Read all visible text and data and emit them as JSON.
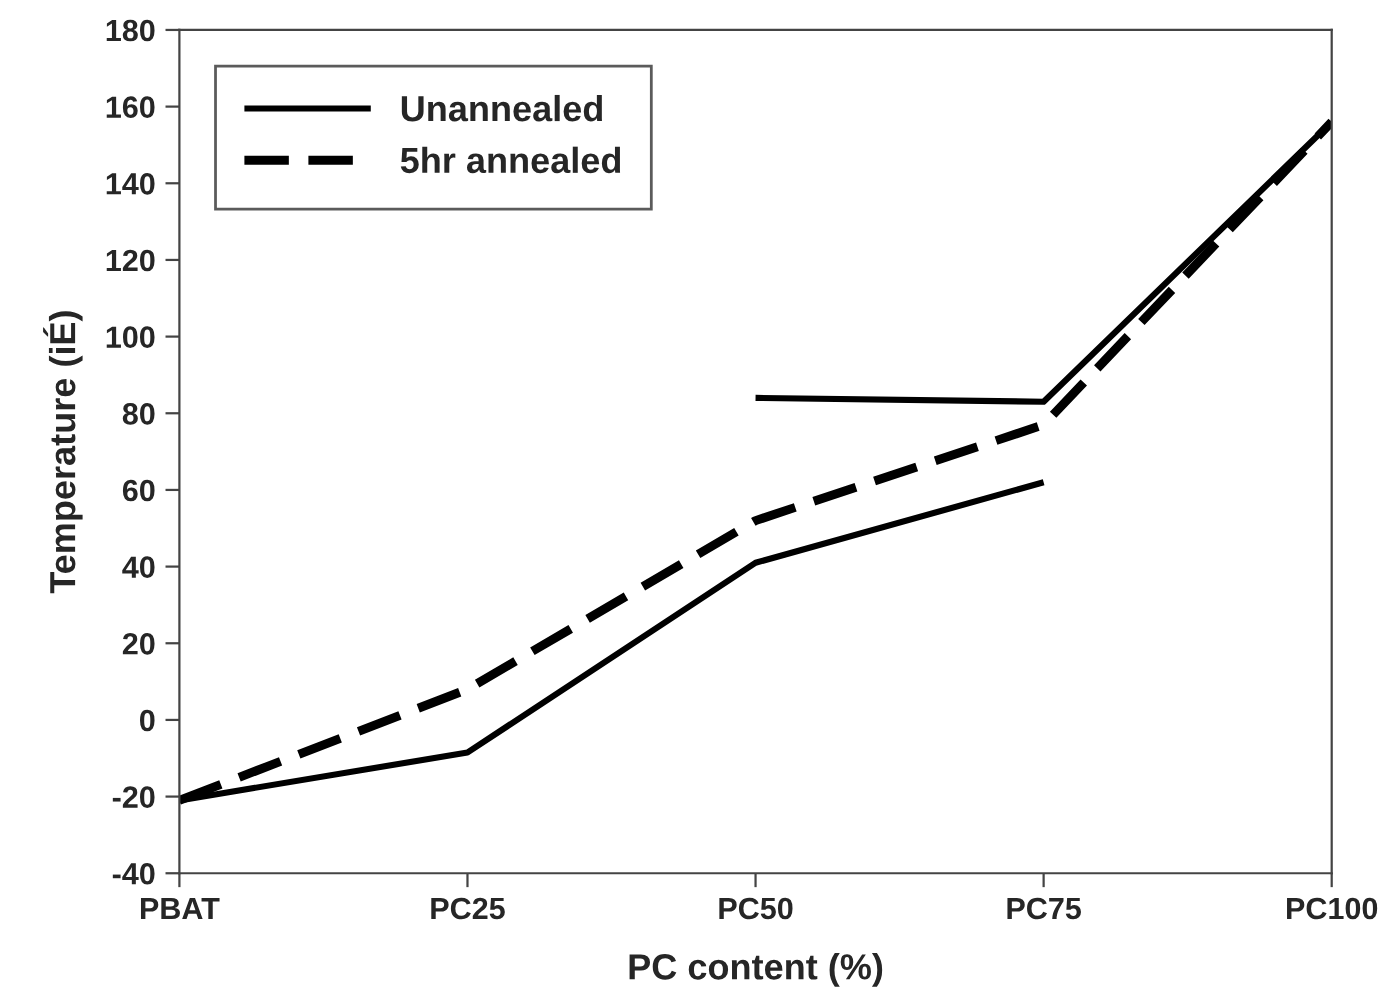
{
  "chart_data": {
    "type": "line",
    "xlabel": "PC content (%)",
    "ylabel": "Temperature (iÉ)",
    "categories": [
      "PBAT",
      "PC25",
      "PC50",
      "PC75",
      "PC100"
    ],
    "series": [
      {
        "name": "Unannealed",
        "color": "#000000",
        "line_style": "solid",
        "values": [
          -21,
          -8.5,
          41,
          62,
          null
        ]
      },
      {
        "name": "5hr annealed",
        "color": "#000000",
        "line_style": "dashed",
        "values": [
          -21,
          8,
          52,
          77,
          156
        ]
      },
      {
        "color": "#000000",
        "line_style": "solid",
        "values": [
          null,
          null,
          84,
          83,
          156
        ]
      }
    ],
    "ylim": [
      -40,
      180
    ],
    "yticks": [
      -40,
      -20,
      0,
      20,
      40,
      60,
      80,
      100,
      120,
      140,
      160,
      180
    ],
    "grid": false,
    "legend": "top left",
    "marker": "none"
  }
}
